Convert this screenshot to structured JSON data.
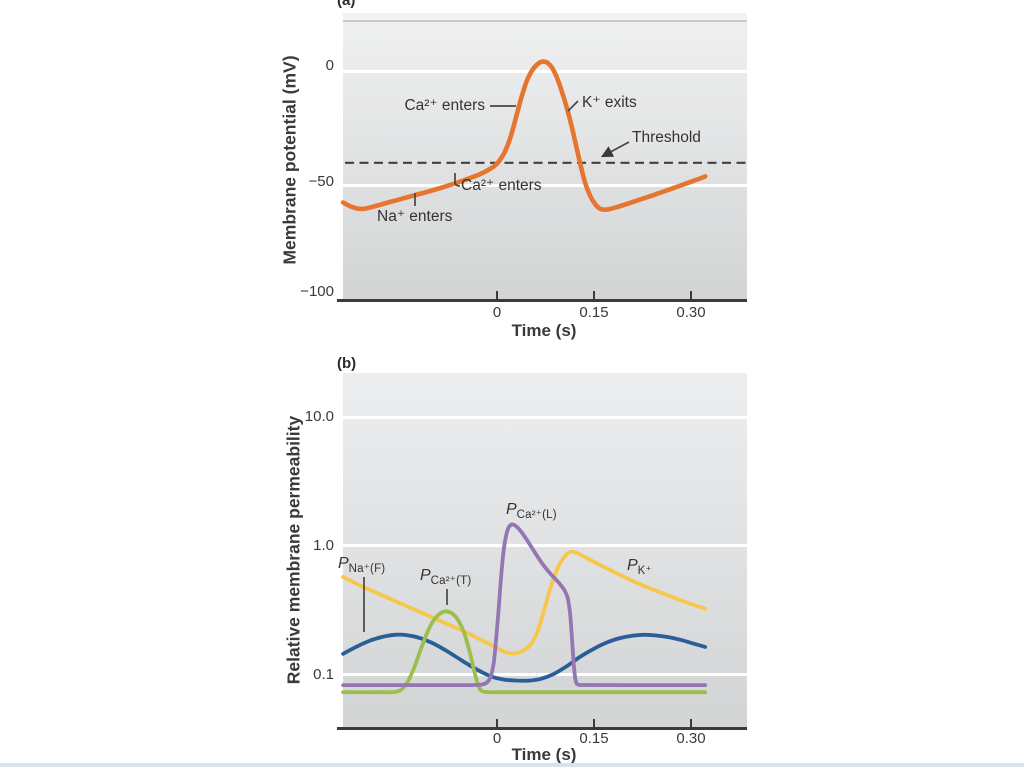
{
  "figure": {
    "panel_a": {
      "label": "(a)",
      "y_title": "Membrane potential (mV)",
      "x_title": "Time (s)",
      "y_tick_labels": [
        "0",
        "−50",
        "−100"
      ],
      "x_tick_labels": [
        "0",
        "0.15",
        "0.30"
      ],
      "ann": {
        "ca_upper": "Ca²⁺ enters",
        "k_exits": "K⁺ exits",
        "threshold": "Threshold",
        "ca_lower": "Ca²⁺ enters",
        "na": "Na⁺ enters"
      }
    },
    "panel_b": {
      "label": "(b)",
      "y_title": "Relative membrane permeability",
      "x_title": "Time (s)",
      "y_tick_labels": [
        "10.0",
        "1.0",
        "0.1"
      ],
      "x_tick_labels": [
        "0",
        "0.15",
        "0.30"
      ],
      "series_labels": {
        "p_na": {
          "p": "P",
          "sub": "Na⁺(F)"
        },
        "p_ca_t": {
          "p": "P",
          "sub": "Ca²⁺(T)"
        },
        "p_ca_l": {
          "p": "P",
          "sub": "Ca²⁺(L)"
        },
        "p_k": {
          "p": "P",
          "sub": "K⁺"
        }
      }
    }
  },
  "colors": {
    "membrane_orange": "#e5752f",
    "pk_yellow": "#f6c74a",
    "pna_blue": "#2a5e96",
    "pcat_green": "#9cbe4d",
    "pcal_purple": "#9477b2",
    "axis_dark": "#3a3a3a",
    "grid_white": "#ffffff"
  },
  "chart_data": [
    {
      "type": "line",
      "panel": "a",
      "xlabel": "Time (s)",
      "ylabel": "Membrane potential (mV)",
      "xlim": [
        -0.238,
        0.385
      ],
      "ylim": [
        -100,
        26
      ],
      "x_ticks": [
        0,
        0.15,
        0.3
      ],
      "y_ticks": [
        0,
        -50,
        -100
      ],
      "grid": "horizontal white lines at 0 and -50",
      "threshold": {
        "value": -40,
        "style": "dashed",
        "label": "Threshold"
      },
      "annotations": [
        "Ca²⁺ enters (upstroke)",
        "K⁺ exits (repolarization)",
        "Threshold (−40 mV dashed line)",
        "Ca²⁺ enters (late pacemaker potential)",
        "Na⁺ enters (early pacemaker potential)"
      ],
      "series": [
        {
          "name": "Membrane potential",
          "color": "#e5752f",
          "points": [
            [
              -0.238,
              -57.5
            ],
            [
              -0.228,
              -59
            ],
            [
              -0.218,
              -60
            ],
            [
              -0.207,
              -60.3
            ],
            [
              -0.195,
              -59.6
            ],
            [
              -0.18,
              -58.4
            ],
            [
              -0.162,
              -57
            ],
            [
              -0.144,
              -55.6
            ],
            [
              -0.126,
              -54.2
            ],
            [
              -0.108,
              -52.8
            ],
            [
              -0.09,
              -51.3
            ],
            [
              -0.072,
              -49.7
            ],
            [
              -0.054,
              -48
            ],
            [
              -0.038,
              -46.3
            ],
            [
              -0.024,
              -44.7
            ],
            [
              -0.012,
              -42.9
            ],
            [
              -0.003,
              -41.2
            ],
            [
              0.004,
              -39
            ],
            [
              0.012,
              -35.2
            ],
            [
              0.02,
              -29.5
            ],
            [
              0.028,
              -21.5
            ],
            [
              0.037,
              -12
            ],
            [
              0.046,
              -4
            ],
            [
              0.055,
              1
            ],
            [
              0.064,
              3.8
            ],
            [
              0.072,
              4.6
            ],
            [
              0.08,
              3.6
            ],
            [
              0.088,
              0.5
            ],
            [
              0.096,
              -5
            ],
            [
              0.104,
              -12
            ],
            [
              0.112,
              -20
            ],
            [
              0.12,
              -29.5
            ],
            [
              0.128,
              -39.5
            ],
            [
              0.136,
              -48.5
            ],
            [
              0.144,
              -54.5
            ],
            [
              0.152,
              -58.3
            ],
            [
              0.16,
              -60.3
            ],
            [
              0.17,
              -60.6
            ],
            [
              0.182,
              -59.8
            ],
            [
              0.196,
              -58.6
            ],
            [
              0.214,
              -56.9
            ],
            [
              0.234,
              -55
            ],
            [
              0.254,
              -53
            ],
            [
              0.274,
              -51
            ],
            [
              0.294,
              -49
            ],
            [
              0.31,
              -47.3
            ],
            [
              0.322,
              -46
            ]
          ]
        }
      ]
    },
    {
      "type": "line",
      "panel": "b",
      "xlabel": "Time (s)",
      "ylabel": "Relative membrane permeability",
      "yscale": "log",
      "xlim": [
        -0.238,
        0.385
      ],
      "ylim": [
        0.04,
        25
      ],
      "x_ticks": [
        0,
        0.15,
        0.3
      ],
      "y_ticks": [
        10.0,
        1.0,
        0.1
      ],
      "grid": "horizontal white lines at 10.0, 1.0, 0.1",
      "series": [
        {
          "name": "P K⁺",
          "color": "#f6c74a",
          "points": [
            [
              -0.238,
              0.575
            ],
            [
              -0.21,
              0.49
            ],
            [
              -0.18,
              0.42
            ],
            [
              -0.15,
              0.36
            ],
            [
              -0.12,
              0.31
            ],
            [
              -0.09,
              0.265
            ],
            [
              -0.06,
              0.228
            ],
            [
              -0.04,
              0.205
            ],
            [
              -0.02,
              0.182
            ],
            [
              0,
              0.162
            ],
            [
              0.012,
              0.151
            ],
            [
              0.025,
              0.147
            ],
            [
              0.04,
              0.154
            ],
            [
              0.052,
              0.172
            ],
            [
              0.063,
              0.22
            ],
            [
              0.073,
              0.32
            ],
            [
              0.083,
              0.48
            ],
            [
              0.093,
              0.66
            ],
            [
              0.103,
              0.81
            ],
            [
              0.113,
              0.9
            ],
            [
              0.125,
              0.875
            ],
            [
              0.14,
              0.8
            ],
            [
              0.16,
              0.71
            ],
            [
              0.185,
              0.615
            ],
            [
              0.21,
              0.535
            ],
            [
              0.24,
              0.462
            ],
            [
              0.27,
              0.404
            ],
            [
              0.3,
              0.355
            ],
            [
              0.322,
              0.328
            ]
          ]
        },
        {
          "name": "P Na⁺(F)",
          "color": "#2a5e96",
          "points": [
            [
              -0.238,
              0.146
            ],
            [
              -0.216,
              0.167
            ],
            [
              -0.196,
              0.185
            ],
            [
              -0.176,
              0.198
            ],
            [
              -0.158,
              0.205
            ],
            [
              -0.14,
              0.204
            ],
            [
              -0.12,
              0.194
            ],
            [
              -0.1,
              0.177
            ],
            [
              -0.08,
              0.156
            ],
            [
              -0.06,
              0.135
            ],
            [
              -0.04,
              0.117
            ],
            [
              -0.02,
              0.103
            ],
            [
              -0.004,
              0.0955
            ],
            [
              0.012,
              0.092
            ],
            [
              0.03,
              0.0905
            ],
            [
              0.05,
              0.0905
            ],
            [
              0.068,
              0.0935
            ],
            [
              0.088,
              0.102
            ],
            [
              0.108,
              0.117
            ],
            [
              0.128,
              0.138
            ],
            [
              0.148,
              0.158
            ],
            [
              0.168,
              0.177
            ],
            [
              0.188,
              0.192
            ],
            [
              0.208,
              0.201
            ],
            [
              0.226,
              0.205
            ],
            [
              0.246,
              0.2025
            ],
            [
              0.266,
              0.196
            ],
            [
              0.286,
              0.186
            ],
            [
              0.306,
              0.174
            ],
            [
              0.322,
              0.165
            ]
          ]
        },
        {
          "name": "P Ca²⁺(T)",
          "color": "#9cbe4d",
          "points": [
            [
              -0.238,
              0.0735
            ],
            [
              -0.18,
              0.0735
            ],
            [
              -0.16,
              0.0737
            ],
            [
              -0.149,
              0.0765
            ],
            [
              -0.139,
              0.087
            ],
            [
              -0.129,
              0.111
            ],
            [
              -0.119,
              0.152
            ],
            [
              -0.109,
              0.207
            ],
            [
              -0.099,
              0.261
            ],
            [
              -0.089,
              0.297
            ],
            [
              -0.079,
              0.312
            ],
            [
              -0.069,
              0.299
            ],
            [
              -0.06,
              0.266
            ],
            [
              -0.051,
              0.213
            ],
            [
              -0.043,
              0.156
            ],
            [
              -0.036,
              0.112
            ],
            [
              -0.03,
              0.086
            ],
            [
              -0.025,
              0.0762
            ],
            [
              -0.017,
              0.0738
            ],
            [
              0,
              0.0735
            ],
            [
              0.08,
              0.0735
            ],
            [
              0.18,
              0.0735
            ],
            [
              0.322,
              0.0735
            ]
          ]
        },
        {
          "name": "P Ca²⁺(L)",
          "color": "#9477b2",
          "points": [
            [
              -0.238,
              0.0835
            ],
            [
              -0.1,
              0.0835
            ],
            [
              -0.04,
              0.0835
            ],
            [
              -0.022,
              0.0845
            ],
            [
              -0.014,
              0.089
            ],
            [
              -0.009,
              0.1
            ],
            [
              -0.005,
              0.125
            ],
            [
              -0.002,
              0.175
            ],
            [
              0.002,
              0.3
            ],
            [
              0.006,
              0.55
            ],
            [
              0.01,
              0.9
            ],
            [
              0.014,
              1.2
            ],
            [
              0.018,
              1.39
            ],
            [
              0.023,
              1.47
            ],
            [
              0.029,
              1.43
            ],
            [
              0.037,
              1.3
            ],
            [
              0.047,
              1.1
            ],
            [
              0.058,
              0.9
            ],
            [
              0.07,
              0.73
            ],
            [
              0.082,
              0.615
            ],
            [
              0.094,
              0.53
            ],
            [
              0.103,
              0.465
            ],
            [
              0.109,
              0.4
            ],
            [
              0.113,
              0.3
            ],
            [
              0.116,
              0.19
            ],
            [
              0.119,
              0.115
            ],
            [
              0.122,
              0.089
            ],
            [
              0.126,
              0.0843
            ],
            [
              0.135,
              0.0836
            ],
            [
              0.2,
              0.0835
            ],
            [
              0.322,
              0.0835
            ]
          ]
        }
      ]
    }
  ]
}
